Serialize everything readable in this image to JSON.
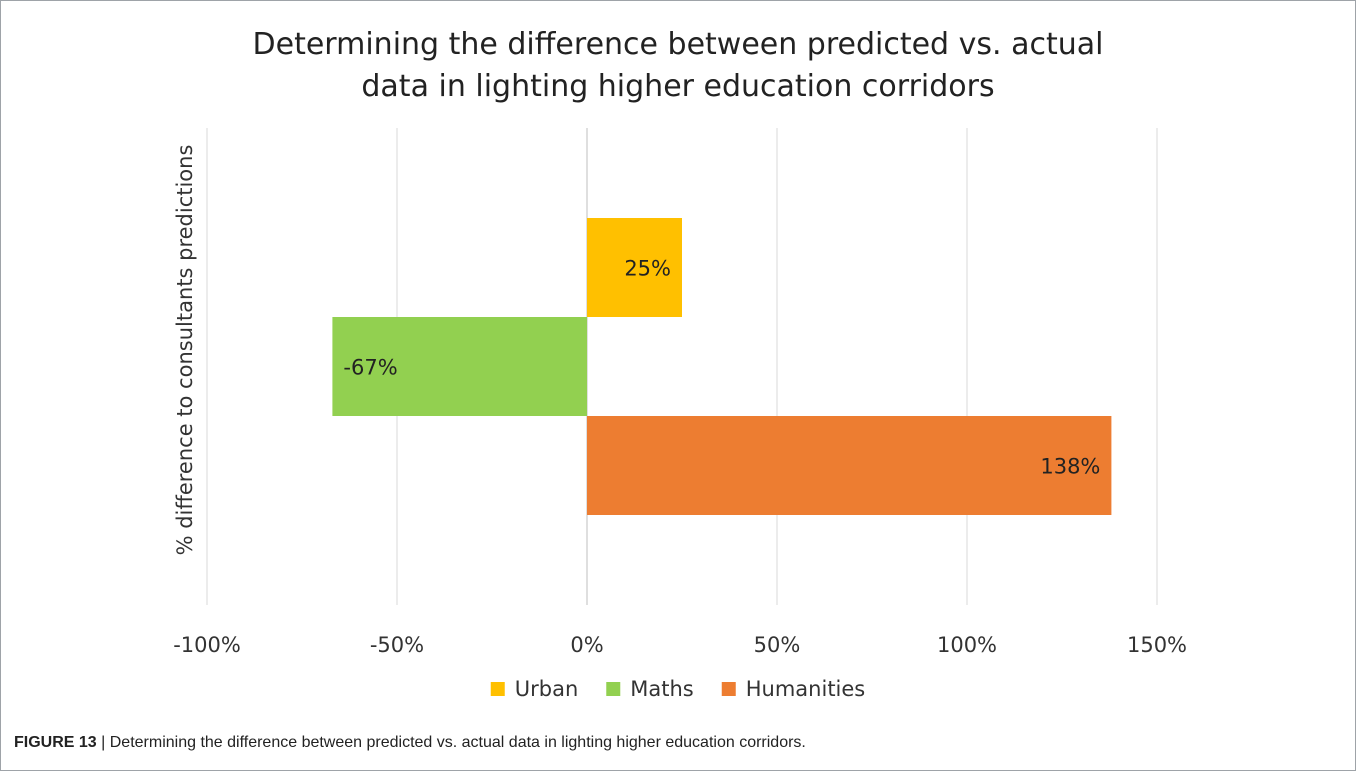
{
  "chart_data": {
    "type": "bar",
    "orientation": "horizontal",
    "title_lines": [
      "Determining the difference between predicted vs. actual",
      "data in lighting higher education corridors"
    ],
    "ylabel": "% difference to consultants predictions",
    "xlabel": "",
    "xlim": [
      -100,
      150
    ],
    "x_ticks": [
      -100,
      -50,
      0,
      50,
      100,
      150
    ],
    "x_tick_labels": [
      "-100%",
      "-50%",
      "0%",
      "50%",
      "100%",
      "150%"
    ],
    "grid": "vertical",
    "legend_position": "bottom",
    "series": [
      {
        "name": "Urban",
        "value": 25,
        "label": "25%",
        "color": "#ffc000"
      },
      {
        "name": "Maths",
        "value": -67,
        "label": "-67%",
        "color": "#92d050"
      },
      {
        "name": "Humanities",
        "value": 138,
        "label": "138%",
        "color": "#ed7d31"
      }
    ]
  },
  "caption": {
    "label": "FIGURE 13",
    "separator": "|",
    "text": "Determining the difference between predicted vs. actual data in lighting higher education corridors."
  }
}
